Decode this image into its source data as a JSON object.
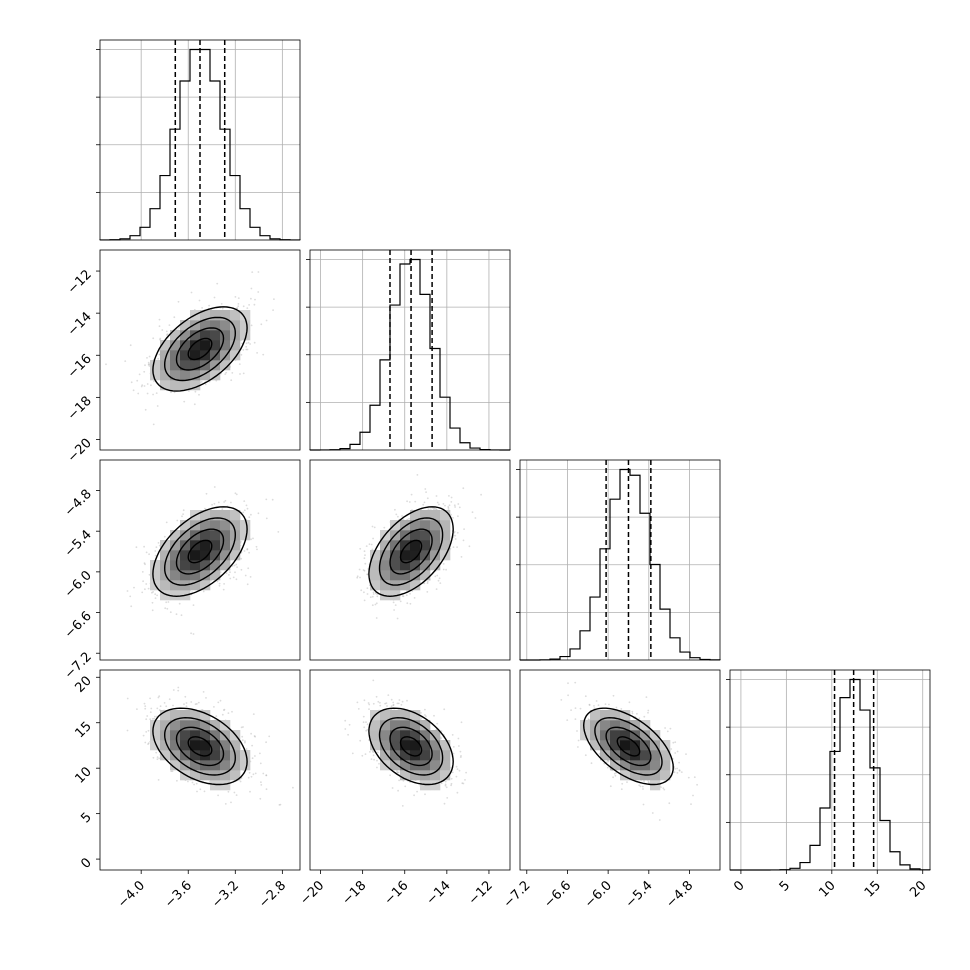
{
  "chart_data": {
    "type": "corner",
    "parameters": [
      {
        "index": 0,
        "range": [
          -4.35,
          -2.65
        ],
        "ticks": [
          -4.0,
          -3.6,
          -3.2,
          -2.8
        ],
        "tick_labels": [
          "−4.0",
          "−3.6",
          "−3.2",
          "−2.8"
        ],
        "mean": -3.5,
        "sd": 0.2,
        "quantiles": [
          -3.71,
          -3.5,
          -3.29
        ]
      },
      {
        "index": 1,
        "range": [
          -20.5,
          -11.0
        ],
        "ticks": [
          -20,
          -18,
          -16,
          -14,
          -12
        ],
        "tick_labels": [
          "−20",
          "−18",
          "−16",
          "−14",
          "−12"
        ],
        "mean": -15.7,
        "sd": 1.0,
        "quantiles": [
          -16.7,
          -15.7,
          -14.7
        ]
      },
      {
        "index": 2,
        "range": [
          -7.3,
          -4.35
        ],
        "ticks": [
          -7.2,
          -6.6,
          -6.0,
          -5.4,
          -4.8
        ],
        "tick_labels": [
          "−7.2",
          "−6.6",
          "−6.0",
          "−5.4",
          "−4.8"
        ],
        "mean": -5.7,
        "sd": 0.33,
        "quantiles": [
          -6.03,
          -5.7,
          -5.37
        ]
      },
      {
        "index": 3,
        "range": [
          -1.2,
          20.8
        ],
        "ticks": [
          0,
          5,
          10,
          15,
          20
        ],
        "tick_labels": [
          "0",
          "5",
          "10",
          "15",
          "20"
        ],
        "mean": 12.4,
        "sd": 2.1,
        "quantiles": [
          10.3,
          12.4,
          14.6
        ]
      }
    ],
    "correlations": [
      [
        0,
        1,
        0.5
      ],
      [
        0,
        2,
        0.5
      ],
      [
        1,
        2,
        0.5
      ],
      [
        0,
        3,
        -0.4
      ],
      [
        1,
        3,
        -0.4
      ],
      [
        2,
        3,
        -0.55
      ]
    ],
    "histogram_bins": 20,
    "contour_levels": [
      0.5,
      1.0,
      1.5,
      2.0
    ],
    "grid": true,
    "xlabel": "",
    "ylabel": "",
    "title": ""
  }
}
